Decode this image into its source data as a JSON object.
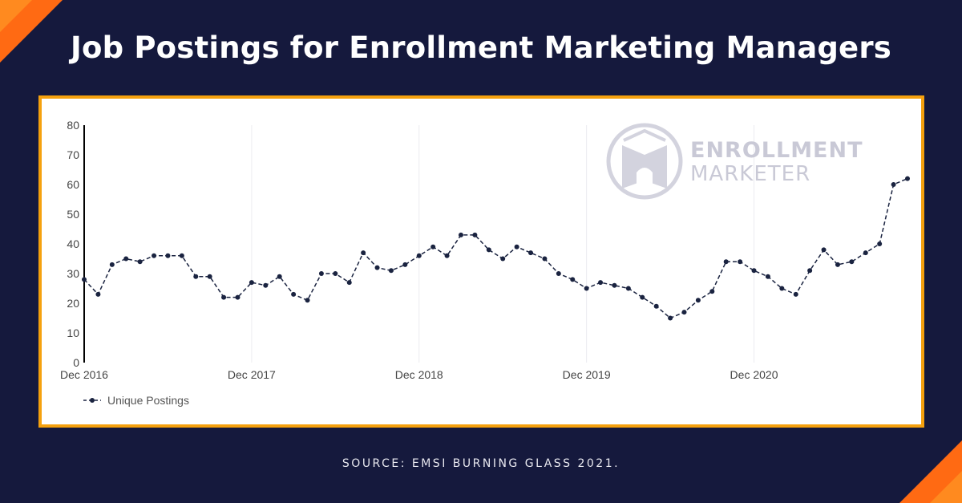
{
  "title": "Job Postings for Enrollment Marketing Managers",
  "source": "SOURCE: EMSI BURNING GLASS 2021.",
  "watermark": {
    "line1": "ENROLLMENT",
    "line2": "MARKETER"
  },
  "colors": {
    "background": "#15193d",
    "frame_border": "#f5a10e",
    "accent": "#ff6a13",
    "series": "#1a2340",
    "watermark": "#c9c9d6"
  },
  "chart_data": {
    "type": "line",
    "title": "",
    "xlabel": "",
    "ylabel": "",
    "ylim": [
      0,
      80
    ],
    "yticks": [
      0,
      10,
      20,
      30,
      40,
      50,
      60,
      70,
      80
    ],
    "xticks": [
      "Dec 2016",
      "Dec 2017",
      "Dec 2018",
      "Dec 2019",
      "Dec 2020"
    ],
    "xtick_index": [
      0,
      12,
      24,
      36,
      48
    ],
    "grid": "vertical",
    "legend": "bottom-left",
    "series": [
      {
        "name": "Unique Postings",
        "style": "dashed-line-with-dots",
        "values": [
          28,
          23,
          33,
          35,
          34,
          36,
          36,
          36,
          29,
          29,
          22,
          22,
          27,
          26,
          29,
          23,
          21,
          30,
          30,
          27,
          37,
          32,
          31,
          33,
          36,
          39,
          36,
          43,
          43,
          38,
          35,
          39,
          37,
          35,
          30,
          28,
          25,
          27,
          26,
          25,
          22,
          19,
          15,
          17,
          21,
          24,
          34,
          34,
          31,
          29,
          25,
          23,
          31,
          38,
          33,
          34,
          37,
          40,
          60,
          62
        ]
      }
    ]
  }
}
